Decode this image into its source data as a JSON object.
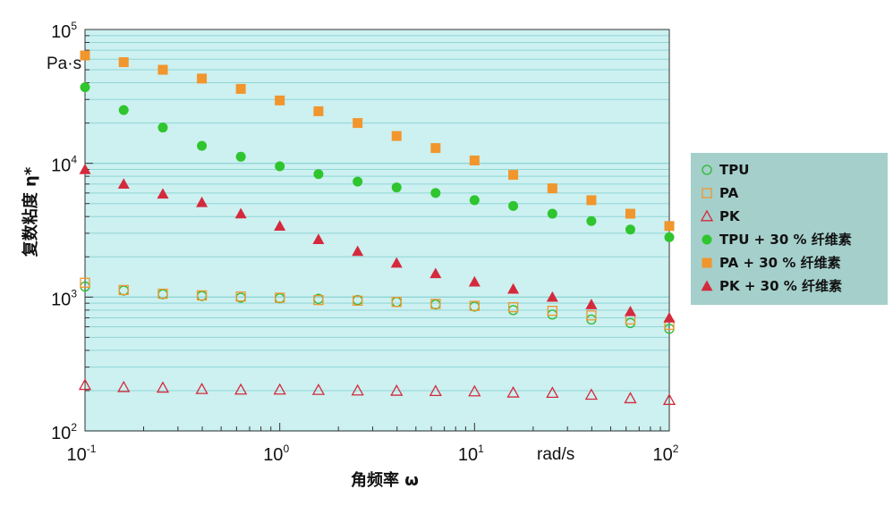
{
  "chart_data": {
    "type": "scatter",
    "xlabel": "角频率 ω",
    "ylabel": "复数粘度 η*",
    "x_unit": "rad/s",
    "y_unit": "Pa·s",
    "x_scale": "log",
    "y_scale": "log",
    "xlim": [
      0.1,
      100
    ],
    "ylim": [
      100,
      100000
    ],
    "grid": true,
    "legend_position": "right",
    "x_ticks": [
      {
        "base": "10",
        "exp": "-1"
      },
      {
        "base": "10",
        "exp": "0"
      },
      {
        "base": "10",
        "exp": "1"
      },
      {
        "base": "10",
        "exp": "2"
      }
    ],
    "y_ticks": [
      {
        "base": "10",
        "exp": "2"
      },
      {
        "base": "10",
        "exp": "3"
      },
      {
        "base": "10",
        "exp": "4"
      },
      {
        "base": "10",
        "exp": "5"
      }
    ],
    "x": [
      0.1,
      0.158,
      0.251,
      0.398,
      0.631,
      1.0,
      1.58,
      2.51,
      3.98,
      6.31,
      10.0,
      15.8,
      25.1,
      39.8,
      63.1,
      100
    ],
    "series": [
      {
        "name": "TPU",
        "marker": "circle-open",
        "color": "#2db82d",
        "values": [
          1200,
          1120,
          1050,
          1020,
          990,
          980,
          970,
          950,
          920,
          880,
          850,
          800,
          740,
          680,
          640,
          580
        ]
      },
      {
        "name": "PA",
        "marker": "square-open",
        "color": "#f0962d",
        "values": [
          1280,
          1130,
          1060,
          1030,
          1010,
          990,
          950,
          940,
          920,
          890,
          860,
          840,
          790,
          730,
          680,
          620
        ]
      },
      {
        "name": "PK",
        "marker": "triangle-open",
        "color": "#d42a3c",
        "values": [
          220,
          212,
          210,
          205,
          203,
          203,
          202,
          200,
          199,
          198,
          197,
          193,
          192,
          186,
          175,
          170
        ]
      },
      {
        "name": "TPU + 30 % 纤维素",
        "marker": "circle-filled",
        "color": "#2ec52e",
        "values": [
          37000,
          25000,
          18500,
          13500,
          11200,
          9500,
          8300,
          7300,
          6600,
          6000,
          5300,
          4800,
          4200,
          3700,
          3200,
          2800
        ]
      },
      {
        "name": "PA + 30 % 纤维素",
        "marker": "square-filled",
        "color": "#f0962d",
        "values": [
          64000,
          57000,
          50000,
          43000,
          36000,
          29500,
          24500,
          20000,
          16000,
          13000,
          10500,
          8200,
          6500,
          5300,
          4200,
          3400
        ]
      },
      {
        "name": "PK + 30 % 纤维素",
        "marker": "triangle-filled",
        "color": "#d42a3c",
        "values": [
          9000,
          7000,
          5900,
          5100,
          4200,
          3400,
          2700,
          2200,
          1800,
          1500,
          1300,
          1150,
          1000,
          880,
          780,
          700
        ]
      }
    ]
  },
  "colors": {
    "plot_bg": "#cdf0f0",
    "grid": "#8fd6d6",
    "legend_bg": "#a4cfcb"
  }
}
